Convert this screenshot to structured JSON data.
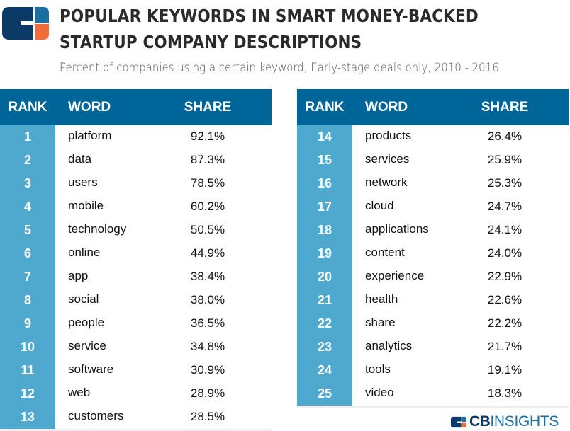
{
  "header": {
    "title_line1": "POPULAR KEYWORDS IN SMART MONEY-BACKED",
    "title_line2": "STARTUP COMPANY DESCRIPTIONS",
    "subtitle": "Percent of companies using a certain keyword, Early-stage deals only, 2010 - 2016"
  },
  "colors": {
    "header_bg": "#006699",
    "rank_bg": "#4fa8cd",
    "logo_dark": "#0b3a66",
    "logo_blue": "#1c6fa3",
    "logo_orange": "#f26b3a"
  },
  "chart_data": {
    "type": "table",
    "title": "POPULAR KEYWORDS IN SMART MONEY-BACKED STARTUP COMPANY DESCRIPTIONS",
    "subtitle": "Percent of companies using a certain keyword, Early-stage deals only, 2010 - 2016",
    "columns": [
      "RANK",
      "WORD",
      "SHARE"
    ],
    "tables": [
      {
        "rows": [
          {
            "rank": "1",
            "word": "platform",
            "share": "92.1%"
          },
          {
            "rank": "2",
            "word": "data",
            "share": "87.3%"
          },
          {
            "rank": "3",
            "word": "users",
            "share": "78.5%"
          },
          {
            "rank": "4",
            "word": "mobile",
            "share": "60.2%"
          },
          {
            "rank": "5",
            "word": "technology",
            "share": "50.5%"
          },
          {
            "rank": "6",
            "word": "online",
            "share": "44.9%"
          },
          {
            "rank": "7",
            "word": "app",
            "share": "38.4%"
          },
          {
            "rank": "8",
            "word": "social",
            "share": "38.0%"
          },
          {
            "rank": "9",
            "word": "people",
            "share": "36.5%"
          },
          {
            "rank": "10",
            "word": "service",
            "share": "34.8%"
          },
          {
            "rank": "11",
            "word": "software",
            "share": "30.9%"
          },
          {
            "rank": "12",
            "word": "web",
            "share": "28.9%"
          },
          {
            "rank": "13",
            "word": "customers",
            "share": "28.5%"
          }
        ]
      },
      {
        "rows": [
          {
            "rank": "14",
            "word": "products",
            "share": "26.4%"
          },
          {
            "rank": "15",
            "word": "services",
            "share": "25.9%"
          },
          {
            "rank": "16",
            "word": "network",
            "share": "25.3%"
          },
          {
            "rank": "17",
            "word": "cloud",
            "share": "24.7%"
          },
          {
            "rank": "18",
            "word": "applications",
            "share": "24.1%"
          },
          {
            "rank": "19",
            "word": "content",
            "share": "24.0%"
          },
          {
            "rank": "20",
            "word": "experience",
            "share": "22.9%"
          },
          {
            "rank": "21",
            "word": "health",
            "share": "22.6%"
          },
          {
            "rank": "22",
            "word": "share",
            "share": "22.2%"
          },
          {
            "rank": "23",
            "word": "analytics",
            "share": "21.7%"
          },
          {
            "rank": "24",
            "word": "tools",
            "share": "19.1%"
          },
          {
            "rank": "25",
            "word": "video",
            "share": "18.3%"
          }
        ]
      }
    ]
  },
  "footer": {
    "brand_bold": "CB",
    "brand_light": "INSIGHTS"
  }
}
